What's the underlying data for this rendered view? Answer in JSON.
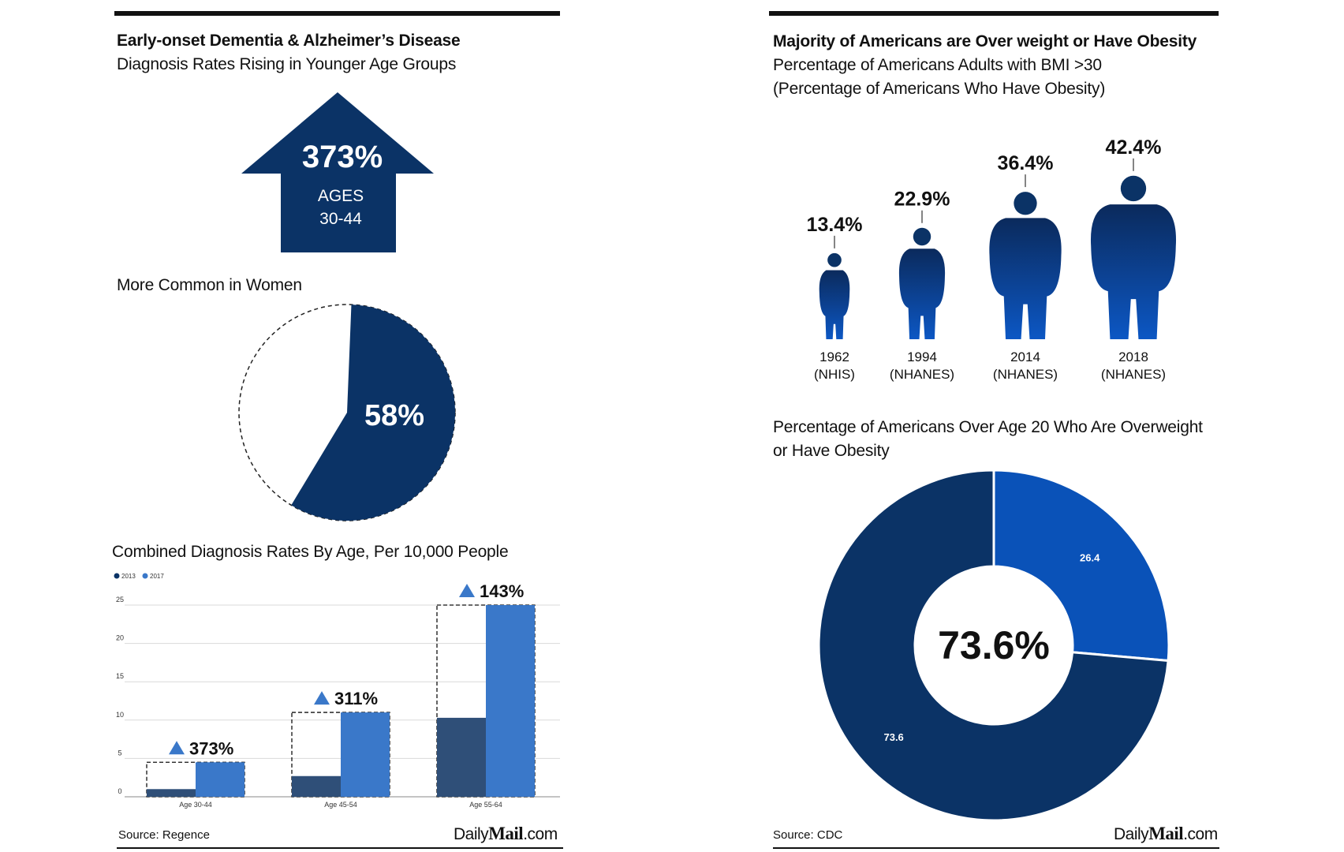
{
  "left": {
    "title": "Early-onset Dementia & Alzheimer’s Disease",
    "subtitle": "Diagnosis Rates Rising in Younger Age Groups",
    "arrow": {
      "value": "373%",
      "label_line1": "AGES",
      "label_line2": "30-44"
    },
    "women_title": "More Common in Women",
    "women_pie": {
      "percent": 58,
      "label": "58%"
    },
    "bar_title": "Combined Diagnosis Rates By Age, Per 10,000 People",
    "source": "Source: Regence"
  },
  "right": {
    "title": "Majority of Americans are Over weight or Have Obesity",
    "subtitle1": "Percentage of Americans Adults with BMI >30",
    "subtitle2": "(Percentage of Americans Who Have Obesity)",
    "figures": [
      {
        "value": "13.4%",
        "year": "1962",
        "survey": "(NHIS)"
      },
      {
        "value": "22.9%",
        "year": "1994",
        "survey": "(NHANES)"
      },
      {
        "value": "36.4%",
        "year": "2014",
        "survey": "(NHANES)"
      },
      {
        "value": "42.4%",
        "year": "2018",
        "survey": "(NHANES)"
      }
    ],
    "donut_title1": "Percentage of Americans Over Age 20 Who Are Overweight",
    "donut_title2": "or Have Obesity",
    "source": "Source: CDC"
  },
  "logo": {
    "prefix": "Daily",
    "brand": "Mail",
    "suffix": ".com"
  },
  "colors": {
    "navy": "#0b3366",
    "blue": "#3a78c9",
    "donut_light": "#0a52b8",
    "bar_2013": "#2f4f78"
  },
  "chart_data": [
    {
      "type": "bar",
      "title": "Combined Diagnosis Rates By Age, Per 10,000 People",
      "categories": [
        "Age 30-44",
        "Age 45-54",
        "Age 55-64"
      ],
      "series": [
        {
          "name": "2013",
          "values": [
            1,
            2.7,
            10.3
          ]
        },
        {
          "name": "2017",
          "values": [
            4.5,
            11,
            25
          ]
        }
      ],
      "annotations": [
        "373%",
        "311%",
        "143%"
      ],
      "yticks": [
        "0",
        "5",
        "10",
        "15",
        "20",
        "25"
      ],
      "ylim": [
        0,
        25
      ],
      "grid": true,
      "legend": "top-left"
    },
    {
      "type": "pie",
      "title": "Percentage of Americans Over Age 20 Who Are Overweight or Have Obesity",
      "slices": [
        {
          "label": "26.4",
          "value": 26.4
        },
        {
          "label": "73.6",
          "value": 73.6
        }
      ],
      "center_label": "73.6%"
    },
    {
      "type": "bar",
      "title": "Percentage of Americans Adults with BMI >30",
      "categories": [
        "1962",
        "1994",
        "2014",
        "2018"
      ],
      "values": [
        13.4,
        22.9,
        36.4,
        42.4
      ]
    }
  ]
}
